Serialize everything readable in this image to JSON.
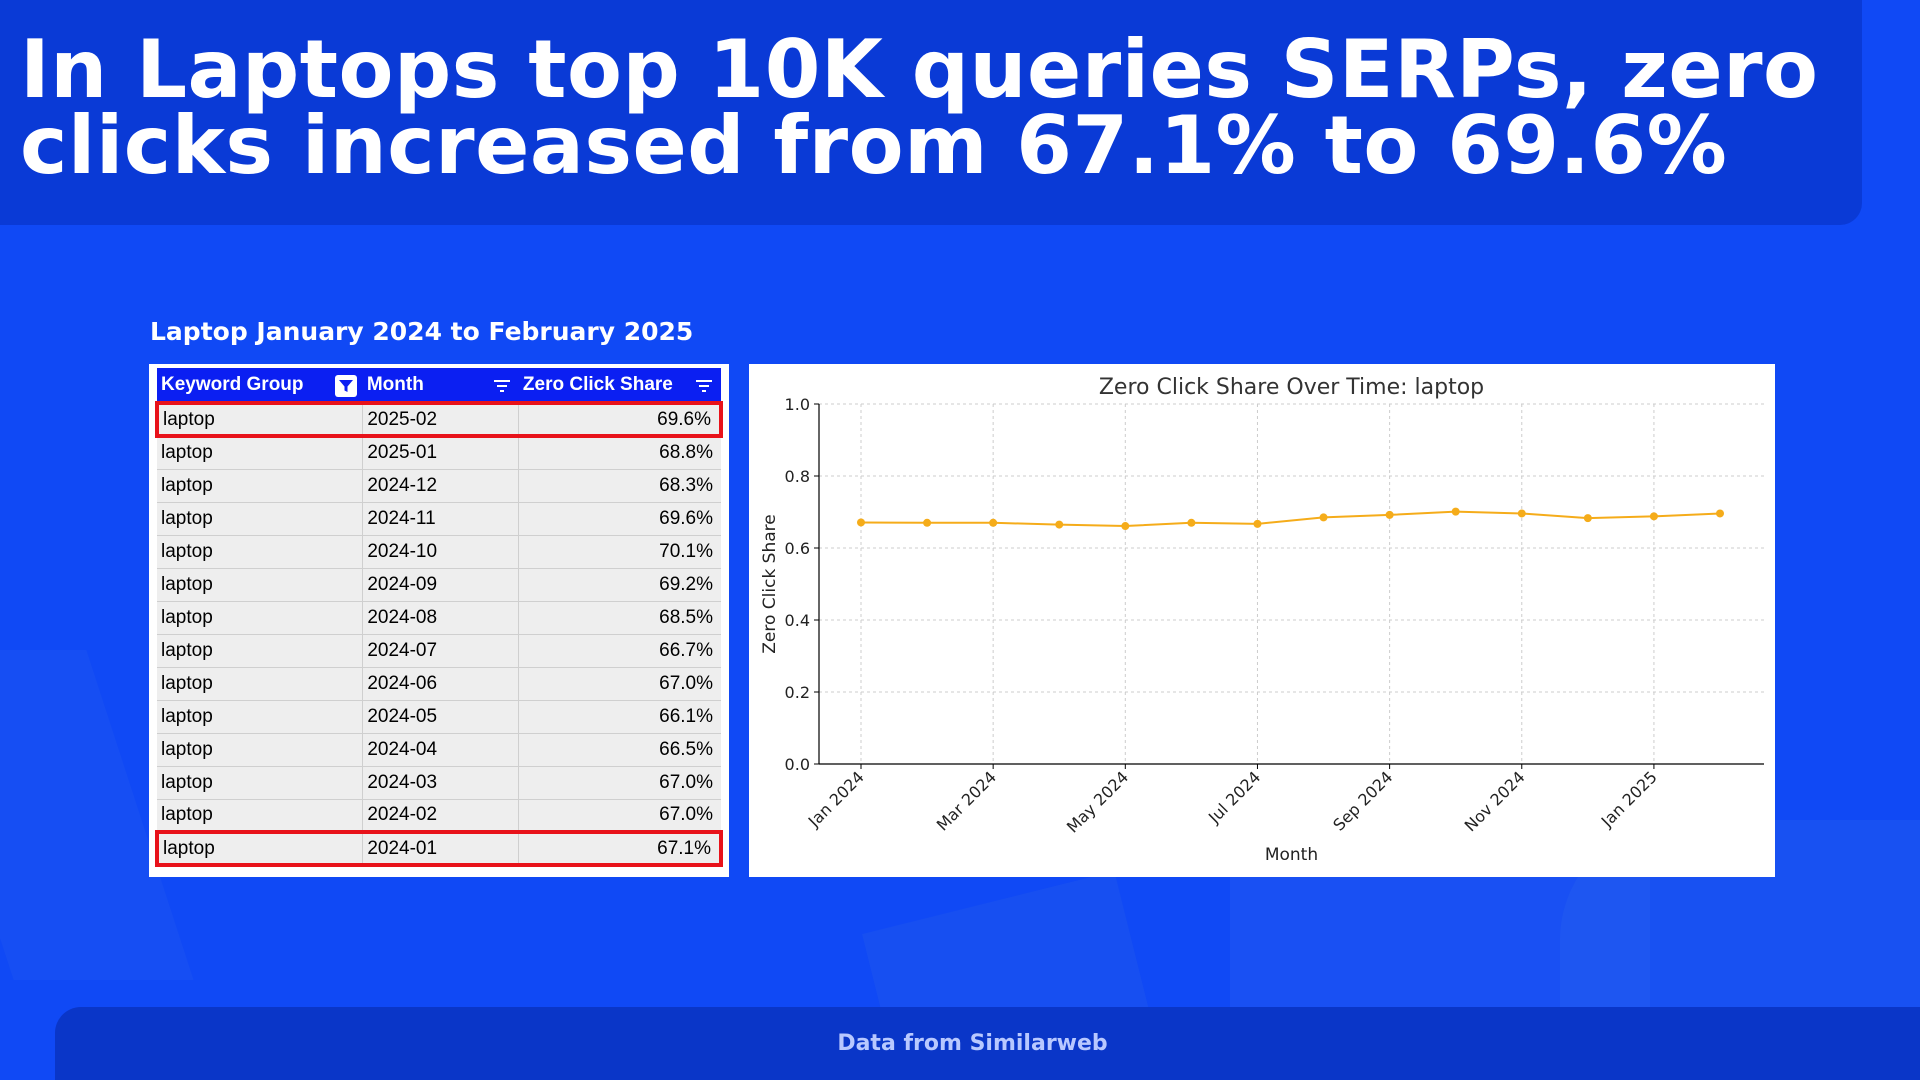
{
  "header": {
    "title": "In Laptops top 10K queries SERPs, zero\nclicks increased from 67.1% to 69.6%"
  },
  "subtitle": "Laptop January 2024 to February 2025",
  "table": {
    "columns": [
      "Keyword Group",
      "Month",
      "Zero Click Share"
    ],
    "rows": [
      {
        "group": "laptop",
        "month": "2025-02",
        "share": "69.6%",
        "highlight": true
      },
      {
        "group": "laptop",
        "month": "2025-01",
        "share": "68.8%",
        "highlight": false
      },
      {
        "group": "laptop",
        "month": "2024-12",
        "share": "68.3%",
        "highlight": false
      },
      {
        "group": "laptop",
        "month": "2024-11",
        "share": "69.6%",
        "highlight": false
      },
      {
        "group": "laptop",
        "month": "2024-10",
        "share": "70.1%",
        "highlight": false
      },
      {
        "group": "laptop",
        "month": "2024-09",
        "share": "69.2%",
        "highlight": false
      },
      {
        "group": "laptop",
        "month": "2024-08",
        "share": "68.5%",
        "highlight": false
      },
      {
        "group": "laptop",
        "month": "2024-07",
        "share": "66.7%",
        "highlight": false
      },
      {
        "group": "laptop",
        "month": "2024-06",
        "share": "67.0%",
        "highlight": false
      },
      {
        "group": "laptop",
        "month": "2024-05",
        "share": "66.1%",
        "highlight": false
      },
      {
        "group": "laptop",
        "month": "2024-04",
        "share": "66.5%",
        "highlight": false
      },
      {
        "group": "laptop",
        "month": "2024-03",
        "share": "67.0%",
        "highlight": false
      },
      {
        "group": "laptop",
        "month": "2024-02",
        "share": "67.0%",
        "highlight": false
      },
      {
        "group": "laptop",
        "month": "2024-01",
        "share": "67.1%",
        "highlight": true
      }
    ],
    "highlight_color": "#e8121a",
    "header_color": "#0b1ff2"
  },
  "chart_data": {
    "type": "line",
    "title": "Zero Click Share Over Time: laptop",
    "xlabel": "Month",
    "ylabel": "Zero Click Share",
    "ylim": [
      0.0,
      1.0
    ],
    "yticks": [
      "0.0",
      "0.2",
      "0.4",
      "0.6",
      "0.8",
      "1.0"
    ],
    "xticks": [
      "Jan 2024",
      "Mar 2024",
      "May 2024",
      "Jul 2024",
      "Sep 2024",
      "Nov 2024",
      "Jan 2025"
    ],
    "xtick_index": [
      0,
      2,
      4,
      6,
      8,
      10,
      12
    ],
    "x": [
      "2024-01",
      "2024-02",
      "2024-03",
      "2024-04",
      "2024-05",
      "2024-06",
      "2024-07",
      "2024-08",
      "2024-09",
      "2024-10",
      "2024-11",
      "2024-12",
      "2025-01",
      "2025-02"
    ],
    "series": [
      {
        "name": "laptop",
        "values": [
          0.671,
          0.67,
          0.67,
          0.665,
          0.661,
          0.67,
          0.667,
          0.685,
          0.692,
          0.701,
          0.696,
          0.683,
          0.688,
          0.696
        ],
        "color": "#f5ac1a"
      }
    ],
    "grid": true
  },
  "footer": {
    "source": "Data from Similarweb"
  }
}
